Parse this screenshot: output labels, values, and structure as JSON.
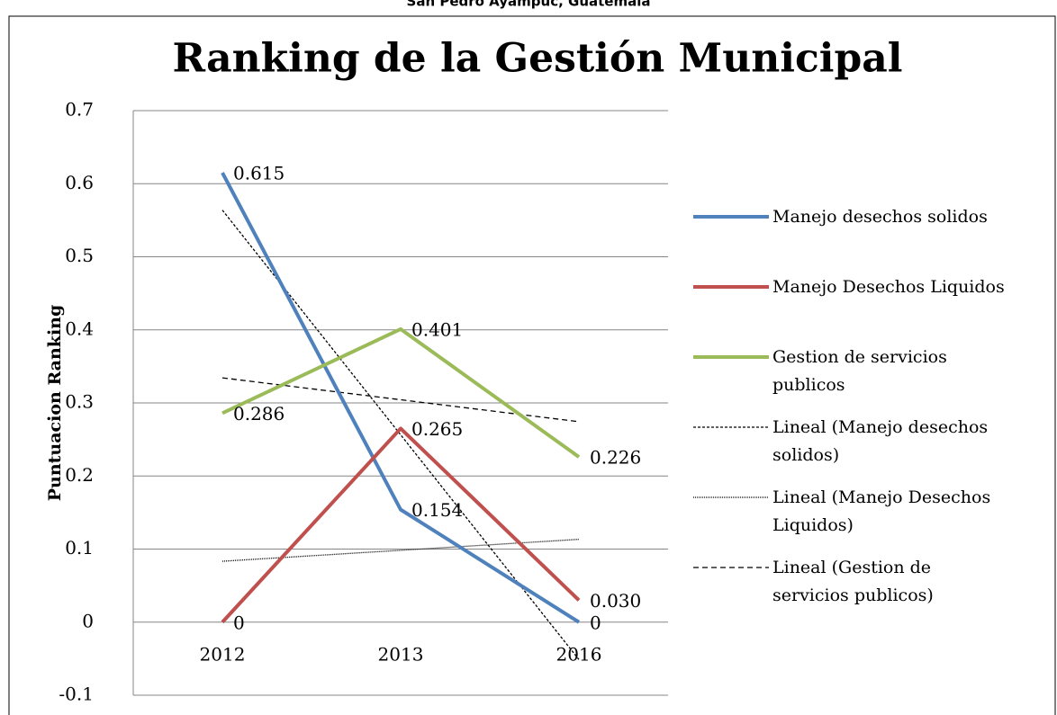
{
  "chart_data": {
    "type": "line",
    "supertitle": "San Pedro Ayampuc, Guatemala",
    "title": "Ranking de la Gestión Municipal",
    "y_label": "Puntuacion Ranking",
    "categories": [
      "2012",
      "2013",
      "2016"
    ],
    "series": [
      {
        "name": "Manejo desechos solidos",
        "color": "#4f81bd",
        "values": [
          0.615,
          0.154,
          0
        ],
        "value_labels": [
          "0.615",
          "0.154",
          "0"
        ]
      },
      {
        "name": "Manejo Desechos Liquidos",
        "color": "#c0504d",
        "values": [
          0,
          0.265,
          0.03
        ],
        "value_labels": [
          "0",
          "0.265",
          "0.030"
        ]
      },
      {
        "name": "Gestion de servicios publicos",
        "color": "#9bbb59",
        "values": [
          0.286,
          0.401,
          0.226
        ],
        "value_labels": [
          "0.286",
          "0.401",
          "0.226"
        ]
      }
    ],
    "trendlines": [
      {
        "name": "Lineal (Manejo desechos solidos)",
        "series": 0,
        "dash": "3,2"
      },
      {
        "name": "Lineal (Manejo Desechos Liquidos)",
        "series": 1,
        "dash": "1,1"
      },
      {
        "name": "Lineal (Gestion de servicios publicos)",
        "series": 2,
        "dash": "6,4"
      }
    ],
    "ylim": [
      -0.1,
      0.7
    ],
    "yticks": [
      -0.1,
      0,
      0.1,
      0.2,
      0.3,
      0.4,
      0.5,
      0.6,
      0.7
    ],
    "grid": true,
    "legend": "right"
  }
}
